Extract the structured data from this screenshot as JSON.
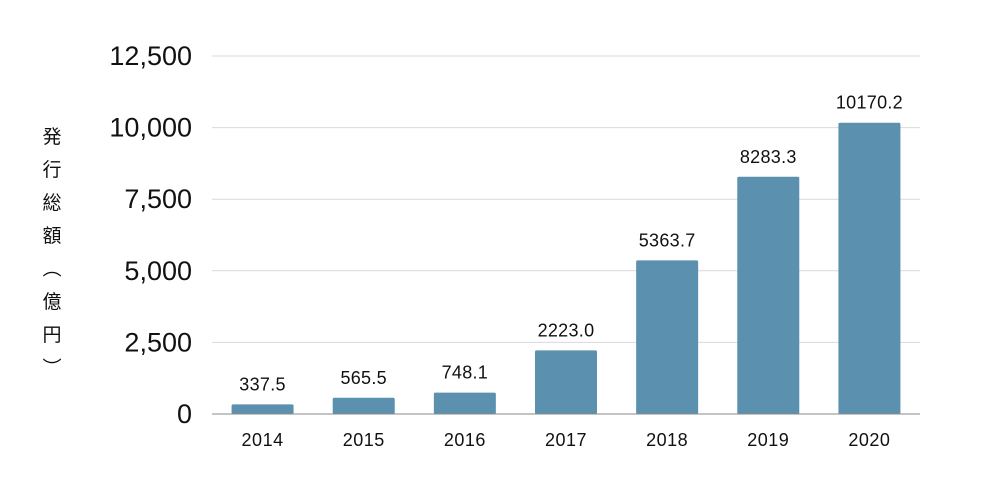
{
  "chart_data": {
    "type": "bar",
    "title": "",
    "xlabel": "",
    "ylabel": "発行総額（億円）",
    "categories": [
      "2014",
      "2015",
      "2016",
      "2017",
      "2018",
      "2019",
      "2020"
    ],
    "values": [
      337.5,
      565.5,
      748.1,
      2223.0,
      5363.7,
      8283.3,
      10170.2
    ],
    "data_labels": [
      "337.5",
      "565.5",
      "748.1",
      "2223.0",
      "5363.7",
      "8283.3",
      "10170.2"
    ],
    "ylim": [
      0,
      12500
    ],
    "yticks": [
      0,
      2500,
      5000,
      7500,
      10000,
      12500
    ],
    "ytick_labels": [
      "0",
      "2,500",
      "5,000",
      "7,500",
      "10,000",
      "12,500"
    ],
    "grid": true,
    "legend": "none",
    "colors": {
      "bar": "#5b91ae",
      "grid": "#d9d9d9",
      "axis": "#888888",
      "text": "#111111"
    }
  }
}
